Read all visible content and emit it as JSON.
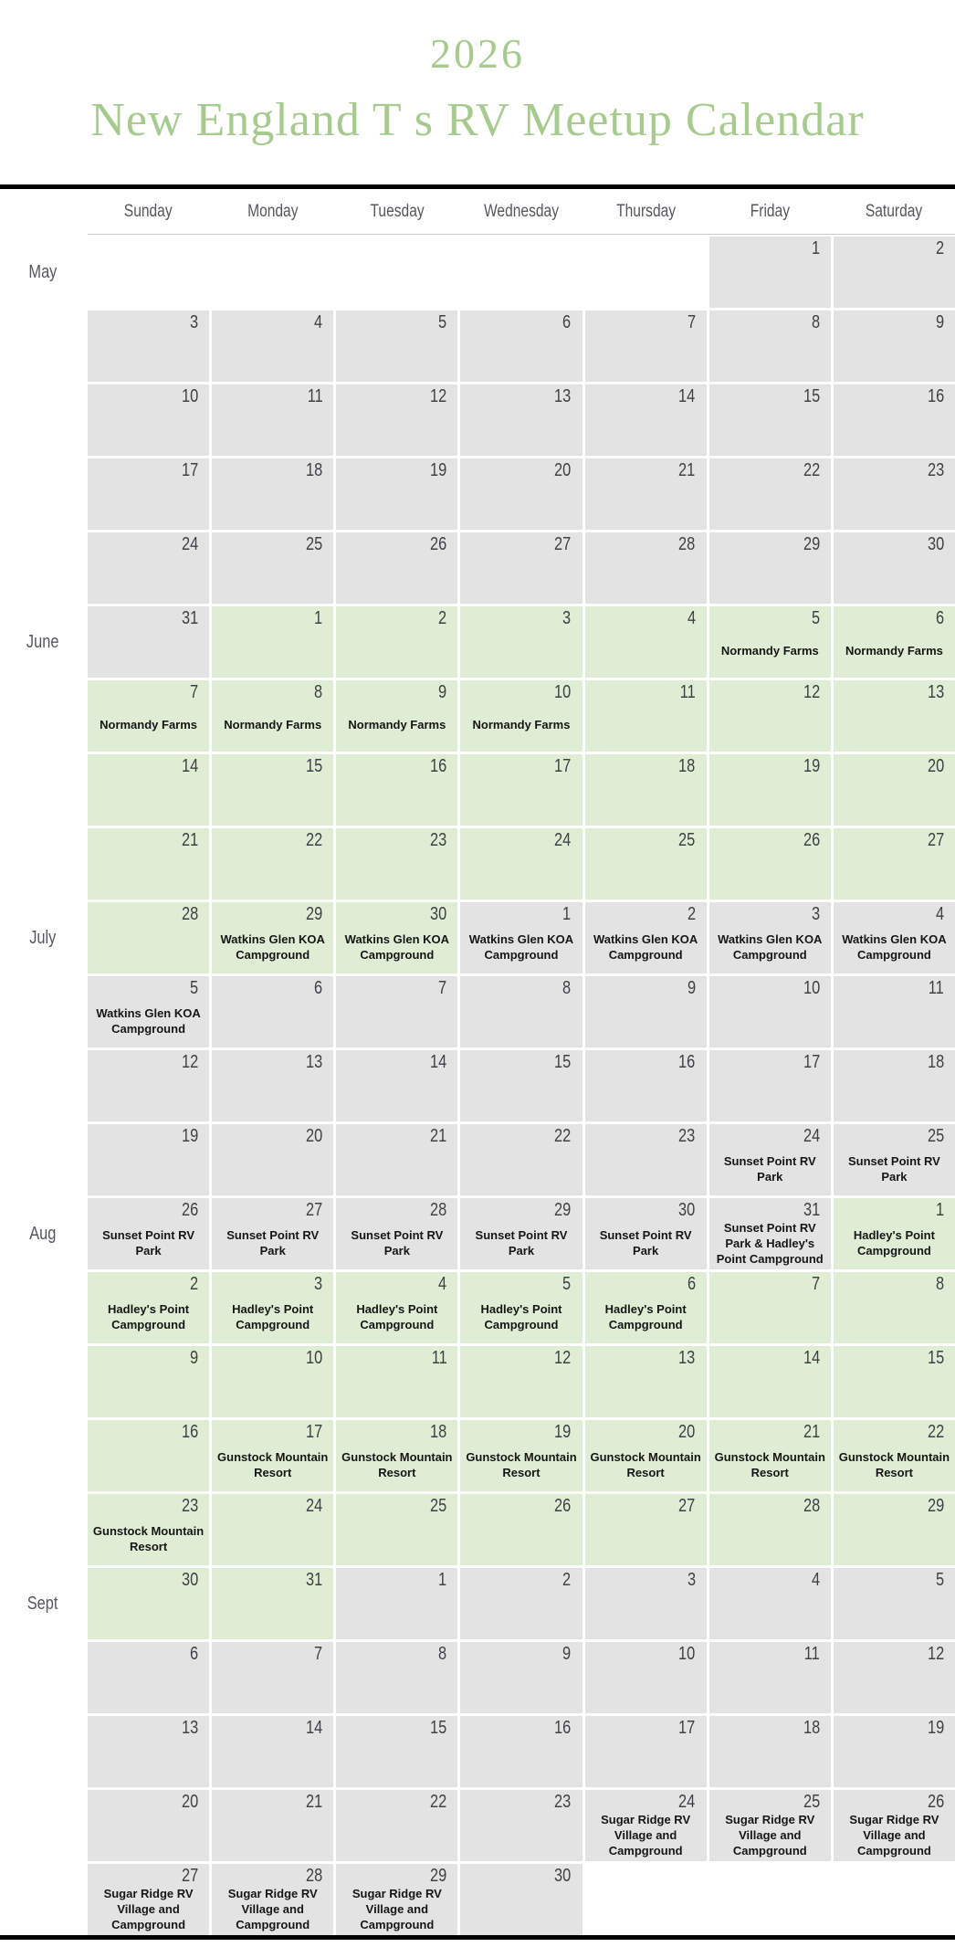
{
  "title": {
    "year": "2026",
    "subtitle": "New England T s RV Meetup Calendar"
  },
  "weekdays": [
    "Sunday",
    "Monday",
    "Tuesday",
    "Wednesday",
    "Thursday",
    "Friday",
    "Saturday"
  ],
  "colors": {
    "accent_green": "#a7cb8e",
    "cell_gray": "#e3e3e3",
    "cell_green": "#dfedd4",
    "bar_black": "#000000"
  },
  "events": {
    "normandy": "Normandy Farms",
    "watkins": "Watkins Glen KOA Campground",
    "sunset": "Sunset Point RV Park",
    "sunset_hadley": "Sunset Point RV Park & Hadley's Point Campground",
    "hadley": "Hadley's Point Campground",
    "gunstock": "Gunstock Mountain Resort",
    "sugar": "Sugar Ridge RV Village and Campground"
  },
  "rows": [
    {
      "label": "May",
      "cells": [
        {
          "day": "",
          "bg": "white",
          "event": ""
        },
        {
          "day": "",
          "bg": "white",
          "event": ""
        },
        {
          "day": "",
          "bg": "white",
          "event": ""
        },
        {
          "day": "",
          "bg": "white",
          "event": ""
        },
        {
          "day": "",
          "bg": "white",
          "event": ""
        },
        {
          "day": "1",
          "bg": "gray",
          "event": ""
        },
        {
          "day": "2",
          "bg": "gray",
          "event": ""
        }
      ]
    },
    {
      "label": "",
      "cells": [
        {
          "day": "3",
          "bg": "gray",
          "event": ""
        },
        {
          "day": "4",
          "bg": "gray",
          "event": ""
        },
        {
          "day": "5",
          "bg": "gray",
          "event": ""
        },
        {
          "day": "6",
          "bg": "gray",
          "event": ""
        },
        {
          "day": "7",
          "bg": "gray",
          "event": ""
        },
        {
          "day": "8",
          "bg": "gray",
          "event": ""
        },
        {
          "day": "9",
          "bg": "gray",
          "event": ""
        }
      ]
    },
    {
      "label": "",
      "cells": [
        {
          "day": "10",
          "bg": "gray",
          "event": ""
        },
        {
          "day": "11",
          "bg": "gray",
          "event": ""
        },
        {
          "day": "12",
          "bg": "gray",
          "event": ""
        },
        {
          "day": "13",
          "bg": "gray",
          "event": ""
        },
        {
          "day": "14",
          "bg": "gray",
          "event": ""
        },
        {
          "day": "15",
          "bg": "gray",
          "event": ""
        },
        {
          "day": "16",
          "bg": "gray",
          "event": ""
        }
      ]
    },
    {
      "label": "",
      "cells": [
        {
          "day": "17",
          "bg": "gray",
          "event": ""
        },
        {
          "day": "18",
          "bg": "gray",
          "event": ""
        },
        {
          "day": "19",
          "bg": "gray",
          "event": ""
        },
        {
          "day": "20",
          "bg": "gray",
          "event": ""
        },
        {
          "day": "21",
          "bg": "gray",
          "event": ""
        },
        {
          "day": "22",
          "bg": "gray",
          "event": ""
        },
        {
          "day": "23",
          "bg": "gray",
          "event": ""
        }
      ]
    },
    {
      "label": "",
      "cells": [
        {
          "day": "24",
          "bg": "gray",
          "event": ""
        },
        {
          "day": "25",
          "bg": "gray",
          "event": ""
        },
        {
          "day": "26",
          "bg": "gray",
          "event": ""
        },
        {
          "day": "27",
          "bg": "gray",
          "event": ""
        },
        {
          "day": "28",
          "bg": "gray",
          "event": ""
        },
        {
          "day": "29",
          "bg": "gray",
          "event": ""
        },
        {
          "day": "30",
          "bg": "gray",
          "event": ""
        }
      ]
    },
    {
      "label": "June",
      "cells": [
        {
          "day": "31",
          "bg": "gray",
          "event": ""
        },
        {
          "day": "1",
          "bg": "green",
          "event": ""
        },
        {
          "day": "2",
          "bg": "green",
          "event": ""
        },
        {
          "day": "3",
          "bg": "green",
          "event": ""
        },
        {
          "day": "4",
          "bg": "green",
          "event": ""
        },
        {
          "day": "5",
          "bg": "green",
          "event": "Normandy Farms"
        },
        {
          "day": "6",
          "bg": "green",
          "event": "Normandy Farms"
        }
      ]
    },
    {
      "label": "",
      "cells": [
        {
          "day": "7",
          "bg": "green",
          "event": "Normandy Farms"
        },
        {
          "day": "8",
          "bg": "green",
          "event": "Normandy Farms"
        },
        {
          "day": "9",
          "bg": "green",
          "event": "Normandy Farms"
        },
        {
          "day": "10",
          "bg": "green",
          "event": "Normandy Farms"
        },
        {
          "day": "11",
          "bg": "green",
          "event": ""
        },
        {
          "day": "12",
          "bg": "green",
          "event": ""
        },
        {
          "day": "13",
          "bg": "green",
          "event": ""
        }
      ]
    },
    {
      "label": "",
      "cells": [
        {
          "day": "14",
          "bg": "green",
          "event": ""
        },
        {
          "day": "15",
          "bg": "green",
          "event": ""
        },
        {
          "day": "16",
          "bg": "green",
          "event": ""
        },
        {
          "day": "17",
          "bg": "green",
          "event": ""
        },
        {
          "day": "18",
          "bg": "green",
          "event": ""
        },
        {
          "day": "19",
          "bg": "green",
          "event": ""
        },
        {
          "day": "20",
          "bg": "green",
          "event": ""
        }
      ]
    },
    {
      "label": "",
      "cells": [
        {
          "day": "21",
          "bg": "green",
          "event": ""
        },
        {
          "day": "22",
          "bg": "green",
          "event": ""
        },
        {
          "day": "23",
          "bg": "green",
          "event": ""
        },
        {
          "day": "24",
          "bg": "green",
          "event": ""
        },
        {
          "day": "25",
          "bg": "green",
          "event": ""
        },
        {
          "day": "26",
          "bg": "green",
          "event": ""
        },
        {
          "day": "27",
          "bg": "green",
          "event": ""
        }
      ]
    },
    {
      "label": "July",
      "cells": [
        {
          "day": "28",
          "bg": "green",
          "event": ""
        },
        {
          "day": "29",
          "bg": "green",
          "event": "Watkins Glen KOA Campground"
        },
        {
          "day": "30",
          "bg": "green",
          "event": "Watkins Glen KOA Campground"
        },
        {
          "day": "1",
          "bg": "gray",
          "event": "Watkins Glen KOA Campground"
        },
        {
          "day": "2",
          "bg": "gray",
          "event": "Watkins Glen KOA Campground"
        },
        {
          "day": "3",
          "bg": "gray",
          "event": "Watkins Glen KOA Campground"
        },
        {
          "day": "4",
          "bg": "gray",
          "event": "Watkins Glen KOA Campground"
        }
      ]
    },
    {
      "label": "",
      "cells": [
        {
          "day": "5",
          "bg": "gray",
          "event": "Watkins Glen KOA Campground"
        },
        {
          "day": "6",
          "bg": "gray",
          "event": ""
        },
        {
          "day": "7",
          "bg": "gray",
          "event": ""
        },
        {
          "day": "8",
          "bg": "gray",
          "event": ""
        },
        {
          "day": "9",
          "bg": "gray",
          "event": ""
        },
        {
          "day": "10",
          "bg": "gray",
          "event": ""
        },
        {
          "day": "11",
          "bg": "gray",
          "event": ""
        }
      ]
    },
    {
      "label": "",
      "cells": [
        {
          "day": "12",
          "bg": "gray",
          "event": ""
        },
        {
          "day": "13",
          "bg": "gray",
          "event": ""
        },
        {
          "day": "14",
          "bg": "gray",
          "event": ""
        },
        {
          "day": "15",
          "bg": "gray",
          "event": ""
        },
        {
          "day": "16",
          "bg": "gray",
          "event": ""
        },
        {
          "day": "17",
          "bg": "gray",
          "event": ""
        },
        {
          "day": "18",
          "bg": "gray",
          "event": ""
        }
      ]
    },
    {
      "label": "",
      "cells": [
        {
          "day": "19",
          "bg": "gray",
          "event": ""
        },
        {
          "day": "20",
          "bg": "gray",
          "event": ""
        },
        {
          "day": "21",
          "bg": "gray",
          "event": ""
        },
        {
          "day": "22",
          "bg": "gray",
          "event": ""
        },
        {
          "day": "23",
          "bg": "gray",
          "event": ""
        },
        {
          "day": "24",
          "bg": "gray",
          "event": "Sunset Point RV Park"
        },
        {
          "day": "25",
          "bg": "gray",
          "event": "Sunset Point RV Park"
        }
      ]
    },
    {
      "label": "Aug",
      "cells": [
        {
          "day": "26",
          "bg": "gray",
          "event": "Sunset Point RV Park"
        },
        {
          "day": "27",
          "bg": "gray",
          "event": "Sunset Point RV Park"
        },
        {
          "day": "28",
          "bg": "gray",
          "event": "Sunset Point RV Park"
        },
        {
          "day": "29",
          "bg": "gray",
          "event": "Sunset Point RV Park"
        },
        {
          "day": "30",
          "bg": "gray",
          "event": "Sunset Point RV Park"
        },
        {
          "day": "31",
          "bg": "gray",
          "event": "Sunset Point RV Park & Hadley's Point Campground"
        },
        {
          "day": "1",
          "bg": "green",
          "event": "Hadley's Point Campground"
        }
      ]
    },
    {
      "label": "",
      "cells": [
        {
          "day": "2",
          "bg": "green",
          "event": "Hadley's Point Campground"
        },
        {
          "day": "3",
          "bg": "green",
          "event": "Hadley's Point Campground"
        },
        {
          "day": "4",
          "bg": "green",
          "event": "Hadley's Point Campground"
        },
        {
          "day": "5",
          "bg": "green",
          "event": "Hadley's Point Campground"
        },
        {
          "day": "6",
          "bg": "green",
          "event": "Hadley's Point Campground"
        },
        {
          "day": "7",
          "bg": "green",
          "event": ""
        },
        {
          "day": "8",
          "bg": "green",
          "event": ""
        }
      ]
    },
    {
      "label": "",
      "cells": [
        {
          "day": "9",
          "bg": "green",
          "event": ""
        },
        {
          "day": "10",
          "bg": "green",
          "event": ""
        },
        {
          "day": "11",
          "bg": "green",
          "event": ""
        },
        {
          "day": "12",
          "bg": "green",
          "event": ""
        },
        {
          "day": "13",
          "bg": "green",
          "event": ""
        },
        {
          "day": "14",
          "bg": "green",
          "event": ""
        },
        {
          "day": "15",
          "bg": "green",
          "event": ""
        }
      ]
    },
    {
      "label": "",
      "cells": [
        {
          "day": "16",
          "bg": "green",
          "event": ""
        },
        {
          "day": "17",
          "bg": "green",
          "event": "Gunstock Mountain Resort"
        },
        {
          "day": "18",
          "bg": "green",
          "event": "Gunstock Mountain Resort"
        },
        {
          "day": "19",
          "bg": "green",
          "event": "Gunstock Mountain Resort"
        },
        {
          "day": "20",
          "bg": "green",
          "event": "Gunstock Mountain Resort"
        },
        {
          "day": "21",
          "bg": "green",
          "event": "Gunstock Mountain Resort"
        },
        {
          "day": "22",
          "bg": "green",
          "event": "Gunstock Mountain Resort"
        }
      ]
    },
    {
      "label": "",
      "cells": [
        {
          "day": "23",
          "bg": "green",
          "event": "Gunstock Mountain Resort"
        },
        {
          "day": "24",
          "bg": "green",
          "event": ""
        },
        {
          "day": "25",
          "bg": "green",
          "event": ""
        },
        {
          "day": "26",
          "bg": "green",
          "event": ""
        },
        {
          "day": "27",
          "bg": "green",
          "event": ""
        },
        {
          "day": "28",
          "bg": "green",
          "event": ""
        },
        {
          "day": "29",
          "bg": "green",
          "event": ""
        }
      ]
    },
    {
      "label": "Sept",
      "cells": [
        {
          "day": "30",
          "bg": "green",
          "event": ""
        },
        {
          "day": "31",
          "bg": "green",
          "event": ""
        },
        {
          "day": "1",
          "bg": "gray",
          "event": ""
        },
        {
          "day": "2",
          "bg": "gray",
          "event": ""
        },
        {
          "day": "3",
          "bg": "gray",
          "event": ""
        },
        {
          "day": "4",
          "bg": "gray",
          "event": ""
        },
        {
          "day": "5",
          "bg": "gray",
          "event": ""
        }
      ]
    },
    {
      "label": "",
      "cells": [
        {
          "day": "6",
          "bg": "gray",
          "event": ""
        },
        {
          "day": "7",
          "bg": "gray",
          "event": ""
        },
        {
          "day": "8",
          "bg": "gray",
          "event": ""
        },
        {
          "day": "9",
          "bg": "gray",
          "event": ""
        },
        {
          "day": "10",
          "bg": "gray",
          "event": ""
        },
        {
          "day": "11",
          "bg": "gray",
          "event": ""
        },
        {
          "day": "12",
          "bg": "gray",
          "event": ""
        }
      ]
    },
    {
      "label": "",
      "cells": [
        {
          "day": "13",
          "bg": "gray",
          "event": ""
        },
        {
          "day": "14",
          "bg": "gray",
          "event": ""
        },
        {
          "day": "15",
          "bg": "gray",
          "event": ""
        },
        {
          "day": "16",
          "bg": "gray",
          "event": ""
        },
        {
          "day": "17",
          "bg": "gray",
          "event": ""
        },
        {
          "day": "18",
          "bg": "gray",
          "event": ""
        },
        {
          "day": "19",
          "bg": "gray",
          "event": ""
        }
      ]
    },
    {
      "label": "",
      "cells": [
        {
          "day": "20",
          "bg": "gray",
          "event": ""
        },
        {
          "day": "21",
          "bg": "gray",
          "event": ""
        },
        {
          "day": "22",
          "bg": "gray",
          "event": ""
        },
        {
          "day": "23",
          "bg": "gray",
          "event": ""
        },
        {
          "day": "24",
          "bg": "gray",
          "event": "Sugar Ridge RV Village and Campground"
        },
        {
          "day": "25",
          "bg": "gray",
          "event": "Sugar Ridge RV Village and Campground"
        },
        {
          "day": "26",
          "bg": "gray",
          "event": "Sugar Ridge RV Village and Campground"
        }
      ]
    },
    {
      "label": "",
      "cells": [
        {
          "day": "27",
          "bg": "gray",
          "event": "Sugar Ridge RV Village and Campground"
        },
        {
          "day": "28",
          "bg": "gray",
          "event": "Sugar Ridge RV Village and Campground"
        },
        {
          "day": "29",
          "bg": "gray",
          "event": "Sugar Ridge RV Village and Campground"
        },
        {
          "day": "30",
          "bg": "gray",
          "event": ""
        },
        {
          "day": "",
          "bg": "white",
          "event": ""
        },
        {
          "day": "",
          "bg": "white",
          "event": ""
        },
        {
          "day": "",
          "bg": "white",
          "event": ""
        }
      ]
    }
  ]
}
